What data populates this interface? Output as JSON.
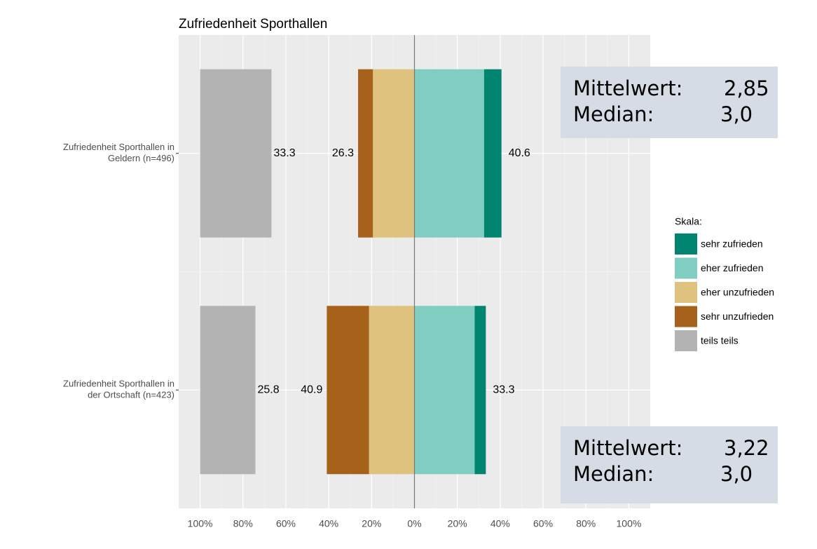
{
  "chart_data": {
    "type": "diverging-bar",
    "title": "Zufriedenheit Sporthallen",
    "categories": [
      [
        "Zufriedenheit Sporthallen in",
        "Geldern (n=496)"
      ],
      [
        "Zufriedenheit Sporthallen in",
        "der Ortschaft (n=423)"
      ]
    ],
    "legend_title": "Skala:",
    "series": [
      {
        "name": "sehr zufrieden",
        "color": "#018571",
        "side": "right",
        "values": [
          8.1,
          5.2
        ]
      },
      {
        "name": "eher zufrieden",
        "color": "#80cdc1",
        "side": "right",
        "values": [
          32.5,
          28.1
        ]
      },
      {
        "name": "eher unzufrieden",
        "color": "#dfc27d",
        "side": "left",
        "values": [
          19.4,
          21.2
        ]
      },
      {
        "name": "sehr unzufrieden",
        "color": "#a6611a",
        "side": "left",
        "values": [
          6.9,
          19.7
        ]
      },
      {
        "name": "teils teils",
        "color": "#b3b3b3",
        "side": "neutral",
        "values": [
          33.3,
          25.8
        ]
      }
    ],
    "labels": {
      "right": [
        40.6,
        33.3
      ],
      "left": [
        26.3,
        40.9
      ],
      "neutral": [
        33.3,
        25.8
      ]
    },
    "xlim": [
      -110,
      110
    ],
    "xticks": [
      {
        "value": -100,
        "label": "100%"
      },
      {
        "value": -80,
        "label": "80%"
      },
      {
        "value": -60,
        "label": "60%"
      },
      {
        "value": -40,
        "label": "40%"
      },
      {
        "value": -20,
        "label": "20%"
      },
      {
        "value": 0,
        "label": "0%"
      },
      {
        "value": 20,
        "label": "20%"
      },
      {
        "value": 40,
        "label": "40%"
      },
      {
        "value": 60,
        "label": "60%"
      },
      {
        "value": 80,
        "label": "80%"
      },
      {
        "value": 100,
        "label": "100%"
      }
    ],
    "grid": true,
    "annotations": [
      {
        "rows": [
          [
            "Mittelwert:",
            "2,85"
          ],
          [
            "Median:",
            "3,0"
          ]
        ]
      },
      {
        "rows": [
          [
            "Mittelwert:",
            "3,22"
          ],
          [
            "Median:",
            "3,0"
          ]
        ]
      }
    ]
  }
}
